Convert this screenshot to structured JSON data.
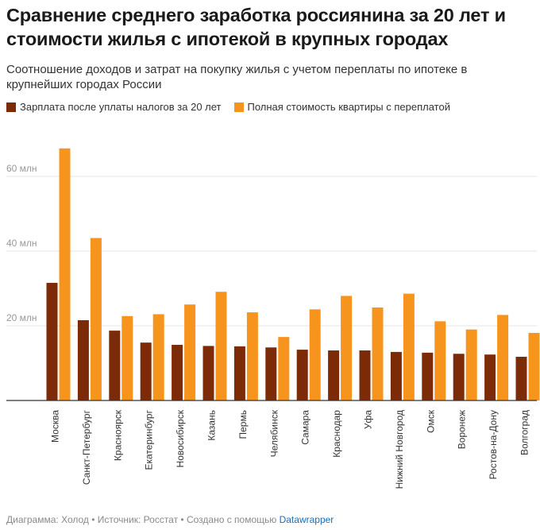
{
  "title": "Сравнение среднего заработка россиянина за 20 лет и стоимости жилья с ипотекой в крупных городах",
  "subtitle": "Соотношение доходов и затрат на покупку жилья с учетом переплаты по ипотеке в крупнейших городах России",
  "colors": {
    "salary": "#7d2a08",
    "apartment": "#f7941d",
    "grid": "#e6e6e6",
    "axis": "#333333",
    "tick": "#999999"
  },
  "chart_data": {
    "type": "bar",
    "categories": [
      "Москва",
      "Санкт-Петербург",
      "Красноярск",
      "Екатеринбург",
      "Новосибирск",
      "Казань",
      "Пермь",
      "Челябинск",
      "Самара",
      "Краснодар",
      "Уфа",
      "Нижний Новгород",
      "Омск",
      "Воронеж",
      "Ростов-на-Дону",
      "Волгоград"
    ],
    "series": [
      {
        "name": "Зарплата после уплаты налогов за 20 лет",
        "values": [
          31.5,
          21.5,
          18.7,
          15.5,
          14.9,
          14.6,
          14.5,
          14.2,
          13.6,
          13.4,
          13.4,
          13.0,
          12.8,
          12.5,
          12.3,
          11.7
        ]
      },
      {
        "name": "Полная стоимость квартиры с переплатой",
        "values": [
          67.5,
          43.5,
          22.6,
          23.1,
          25.7,
          29.1,
          23.6,
          17.0,
          24.4,
          28.0,
          24.9,
          28.6,
          21.2,
          19.0,
          22.9,
          18.1
        ]
      }
    ],
    "yticks": [
      20,
      40,
      60
    ],
    "ytick_labels": [
      "20 млн",
      "40 млн",
      "60 млн"
    ],
    "ylim": [
      0,
      70
    ],
    "grid": true,
    "legend": "top-left"
  },
  "footer": {
    "prefix": "Диаграмма: Холод • Источник: Росстат • Создано с помощью ",
    "link": "Datawrapper"
  }
}
